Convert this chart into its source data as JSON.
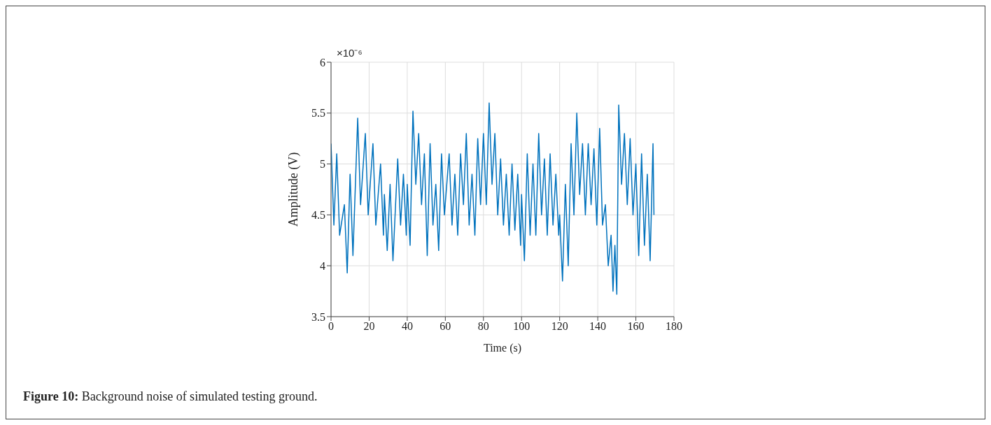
{
  "chart_data": {
    "type": "line",
    "xlabel": "Time (s)",
    "ylabel": "Amplitude (V)",
    "annotations": [
      "×10⁻⁶",
      "Figure 10: Background noise of simulated testing ground."
    ],
    "xlim": [
      0,
      180
    ],
    "xticks": [
      0,
      20,
      40,
      60,
      80,
      100,
      120,
      140,
      160,
      180
    ],
    "ylim": [
      3.5,
      6
    ],
    "yticks": [
      3.5,
      4,
      4.5,
      5,
      5.5,
      6
    ],
    "grid": true,
    "marker": "none",
    "line_style": "solid",
    "x": [
      0,
      1.5,
      3,
      4.5,
      7,
      8.5,
      10,
      11.5,
      14,
      15.5,
      18,
      19.5,
      22,
      23.5,
      26,
      27.5,
      28,
      29.5,
      31,
      32.5,
      35,
      36.5,
      38,
      39.5,
      40,
      41.5,
      43,
      44.5,
      46,
      47.5,
      49,
      50.5,
      52,
      53.5,
      55,
      56.5,
      58,
      59.5,
      62,
      63.5,
      65,
      66.5,
      68,
      69.5,
      71,
      72.5,
      74,
      75.5,
      77,
      78.5,
      80,
      81.5,
      83,
      84.5,
      86,
      87.5,
      89,
      90.5,
      92,
      93.5,
      95,
      96.5,
      98,
      99.5,
      100,
      101.5,
      103,
      104.5,
      106,
      107.5,
      109,
      110.5,
      112,
      113.5,
      115,
      116.5,
      118,
      119.5,
      120,
      121.5,
      123,
      124.5,
      126,
      127.5,
      129,
      130.5,
      132,
      133.5,
      135,
      136.5,
      138,
      139.5,
      141,
      142.5,
      144,
      145.5,
      147,
      148,
      149,
      150,
      151,
      152.5,
      154,
      155.5,
      157,
      158.5,
      160,
      161.5,
      163,
      164.5,
      166,
      167.5,
      169,
      169.5
    ],
    "series": [
      {
        "color": "#0072bd",
        "values": [
          5.2,
          4.4,
          5.1,
          4.3,
          4.6,
          3.93,
          4.9,
          4.1,
          5.45,
          4.6,
          5.3,
          4.5,
          5.2,
          4.4,
          5.0,
          4.3,
          4.7,
          4.15,
          4.8,
          4.05,
          5.05,
          4.4,
          4.9,
          4.3,
          4.8,
          4.2,
          5.52,
          4.8,
          5.3,
          4.6,
          5.1,
          4.1,
          5.2,
          4.4,
          4.8,
          4.15,
          5.1,
          4.5,
          5.1,
          4.4,
          4.9,
          4.3,
          5.1,
          4.6,
          5.3,
          4.4,
          4.9,
          4.3,
          5.25,
          4.6,
          5.3,
          4.6,
          5.6,
          4.8,
          5.3,
          4.5,
          5.05,
          4.4,
          4.9,
          4.3,
          5.0,
          4.35,
          4.9,
          4.2,
          4.7,
          4.05,
          5.1,
          4.3,
          5.0,
          4.3,
          5.3,
          4.5,
          5.05,
          4.3,
          5.1,
          4.4,
          4.9,
          4.3,
          4.5,
          3.85,
          4.8,
          4.0,
          5.2,
          4.5,
          5.5,
          4.7,
          5.2,
          4.5,
          5.2,
          4.6,
          5.15,
          4.4,
          5.35,
          4.4,
          4.6,
          4.0,
          4.3,
          3.75,
          4.2,
          3.72,
          5.58,
          4.8,
          5.3,
          4.6,
          5.25,
          4.5,
          5.0,
          4.1,
          5.1,
          4.2,
          4.9,
          4.05,
          5.2,
          4.5
        ]
      }
    ]
  }
}
